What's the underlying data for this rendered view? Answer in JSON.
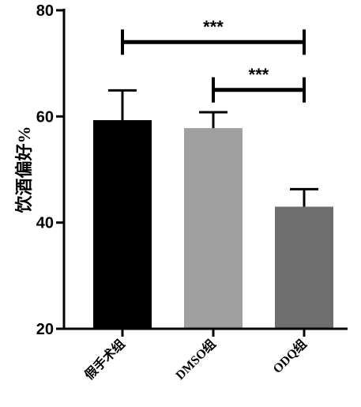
{
  "chart_data": {
    "type": "bar",
    "categories": [
      "假手术组",
      "DMSO组",
      "ODQ组"
    ],
    "values": [
      59.3,
      57.8,
      43.0
    ],
    "errors": [
      5.6,
      3.0,
      3.3
    ],
    "colors": [
      "#000000",
      "#a0a0a0",
      "#6e6e6e"
    ],
    "title": "",
    "xlabel": "",
    "ylabel": "饮酒偏好%",
    "ylim": [
      20,
      80
    ],
    "yticks": [
      20,
      40,
      60,
      80
    ],
    "grid": false,
    "significance": [
      {
        "from": 0,
        "to": 2,
        "label": "***",
        "y": 74
      },
      {
        "from": 1,
        "to": 2,
        "label": "***",
        "y": 65
      }
    ]
  }
}
